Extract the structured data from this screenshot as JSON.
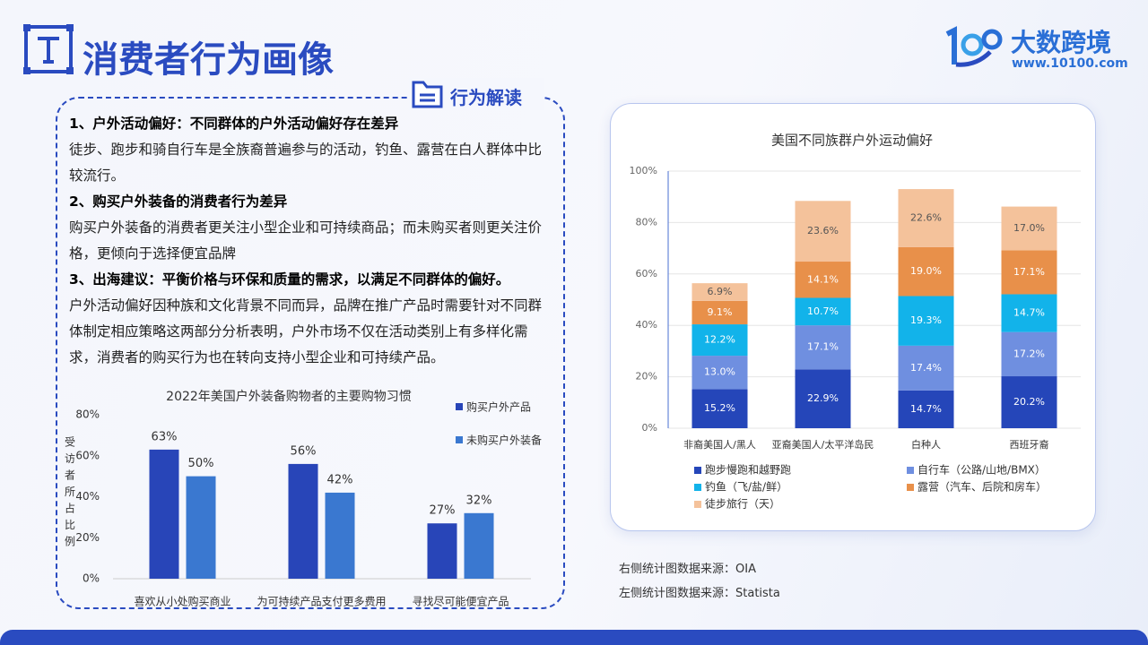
{
  "header": {
    "title": "消费者行为画像",
    "logo_name": "大数跨境",
    "logo_url": "www.10100.com"
  },
  "panel": {
    "tag": "行为解读",
    "paragraphs": [
      {
        "heading": "1、户外活动偏好：不同群体的户外活动偏好存在差异",
        "body": "徒步、跑步和骑自行车是全族裔普遍参与的活动，钓鱼、露营在白人群体中比较流行。"
      },
      {
        "heading": "2、购买户外装备的消费者行为差异",
        "body": "购买户外装备的消费者更关注小型企业和可持续商品；而未购买者则更关注价格，更倾向于选择便宜品牌"
      },
      {
        "heading": "3、出海建议：平衡价格与环保和质量的需求，以满足不同群体的偏好。",
        "body": "户外活动偏好因种族和文化背景不同而异，品牌在推广产品时需要针对不同群体制定相应策略这两部分分析表明，户外市场不仅在活动类别上有多样化需求，消费者的购买行为也在转向支持小型企业和可持续产品。"
      }
    ]
  },
  "chart_data": [
    {
      "type": "bar",
      "title": "2022年美国户外装备购物者的主要购物习惯",
      "y_label": "受访者所占比例",
      "categories": [
        "喜欢从小处购买商业",
        "为可持续产品支付更多费用",
        "寻找尽可能便宜产品"
      ],
      "series": [
        {
          "name": "购买户外产品",
          "color": "#2845b8",
          "values": [
            63,
            56,
            27
          ],
          "value_labels": [
            "63%",
            "56%",
            "27%"
          ]
        },
        {
          "name": "未购买户外装备",
          "color": "#3a78d0",
          "values": [
            50,
            42,
            32
          ],
          "value_labels": [
            "50%",
            "42%",
            "32%"
          ]
        }
      ],
      "ylim": [
        0,
        80
      ],
      "yticks": [
        {
          "value": 0,
          "label": "0%"
        },
        {
          "value": 20,
          "label": "20%"
        },
        {
          "value": 40,
          "label": "40%"
        },
        {
          "value": 60,
          "label": "60%"
        },
        {
          "value": 80,
          "label": "80%"
        }
      ],
      "legend": "top-right",
      "grid": false
    },
    {
      "type": "stacked-bar",
      "title": "美国不同族群户外运动偏好",
      "categories": [
        "非裔美国人/黑人",
        "亚裔美国人/太平洋岛民",
        "白种人",
        "西班牙裔"
      ],
      "series": [
        {
          "name": "跑步慢跑和越野跑",
          "color": "#2546b9",
          "values": [
            15.2,
            22.9,
            14.7,
            20.2
          ],
          "value_labels": [
            "15.2%",
            "22.9%",
            "14.7%",
            "20.2%"
          ]
        },
        {
          "name": "自行车（公路/山地/BMX）",
          "color": "#6f8fe0",
          "values": [
            13.0,
            17.1,
            17.4,
            17.2
          ],
          "value_labels": [
            "13.0%",
            "17.1%",
            "17.4%",
            "17.2%"
          ]
        },
        {
          "name": "钓鱼（飞/盐/鲜）",
          "color": "#12b3ea",
          "values": [
            12.2,
            10.7,
            19.3,
            14.7
          ],
          "value_labels": [
            "12.2%",
            "10.7%",
            "19.3%",
            "14.7%"
          ]
        },
        {
          "name": "露营（汽车、后院和房车）",
          "color": "#e8904a",
          "values": [
            9.1,
            14.1,
            19.0,
            17.1
          ],
          "value_labels": [
            "9.1%",
            "14.1%",
            "19.0%",
            "17.1%"
          ]
        },
        {
          "name": "徒步旅行（天）",
          "color": "#f4c29b",
          "values": [
            6.9,
            23.6,
            22.6,
            17.0
          ],
          "value_labels": [
            "6.9%",
            "23.6%",
            "22.6%",
            "17.0%"
          ]
        }
      ],
      "ylim": [
        0,
        100
      ],
      "yticks": [
        {
          "value": 0,
          "label": "0%"
        },
        {
          "value": 20,
          "label": "20%"
        },
        {
          "value": 40,
          "label": "40%"
        },
        {
          "value": 60,
          "label": "60%"
        },
        {
          "value": 80,
          "label": "80%"
        },
        {
          "value": 100,
          "label": "100%"
        }
      ],
      "legend": "bottom",
      "grid": true
    }
  ],
  "sources": [
    "右侧统计图数据来源：OIA",
    "左侧统计图数据来源：Statista"
  ]
}
